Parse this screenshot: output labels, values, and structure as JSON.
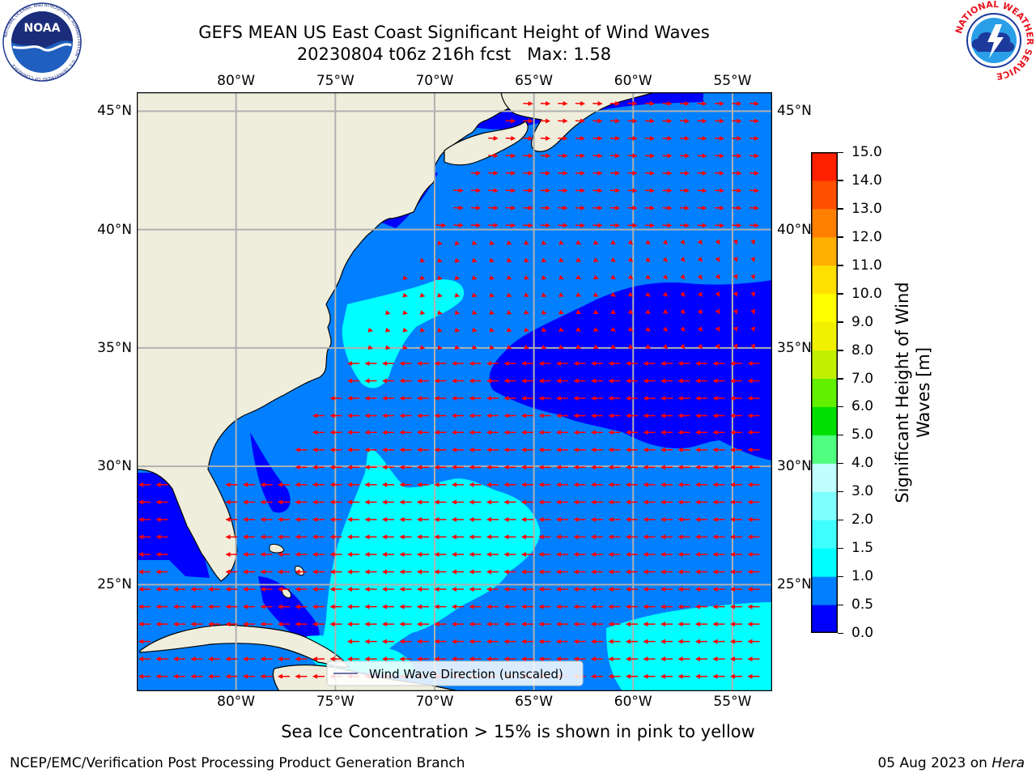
{
  "title": {
    "line1": "GEFS MEAN US East Coast Significant Height of Wind Waves",
    "line2": "20230804 t06z 216h fcst   Max: 1.58"
  },
  "logos": {
    "left": {
      "name": "NOAA",
      "ring_text": "NATIONAL OCEANIC AND ATMOSPHERIC ADMINISTRATION · U.S. DEPARTMENT OF COMMERCE"
    },
    "right": {
      "ring_text": "NATIONAL WEATHER SERVICE"
    }
  },
  "map": {
    "lon_labels": [
      "80°W",
      "75°W",
      "70°W",
      "65°W",
      "60°W",
      "55°W"
    ],
    "lat_labels": [
      "45°N",
      "40°N",
      "35°N",
      "30°N",
      "25°N"
    ],
    "lons": [
      -80,
      -75,
      -70,
      -65,
      -60,
      -55
    ],
    "lats": [
      45,
      40,
      35,
      30,
      25
    ],
    "lon_range": [
      -85,
      -53
    ],
    "lat_range": [
      20.5,
      45.8
    ],
    "land_color": "#efeedd",
    "arrow_color": "#ff0000",
    "grid_color": "#b0b0b0",
    "legend_label": "Wind Wave Direction (unscaled)"
  },
  "colorbar": {
    "ticks": [
      "15.0",
      "14.0",
      "13.0",
      "12.0",
      "11.0",
      "10.0",
      "9.0",
      "8.0",
      "7.0",
      "6.0",
      "5.0",
      "4.0",
      "3.0",
      "2.0",
      "1.5",
      "1.0",
      "0.5",
      "0.0"
    ],
    "colors_bottom_to_top": [
      "#0000ff",
      "#0080ff",
      "#00ffff",
      "#40ffff",
      "#80ffff",
      "#c0ffff",
      "#50ff80",
      "#00e000",
      "#60f000",
      "#c0f000",
      "#f0f000",
      "#ffff00",
      "#ffe000",
      "#ffb000",
      "#ff8000",
      "#ff5000",
      "#ff2000"
    ],
    "label_line1": "Significant Height of Wind",
    "label_line2": "Waves [m]"
  },
  "subtitle": "Sea Ice Concentration > 15% is shown in pink to yellow",
  "footer": {
    "left": "NCEP/EMC/Verification Post Processing Product Generation Branch",
    "right_date": "05 Aug 2023 on ",
    "right_host": "Hera"
  }
}
